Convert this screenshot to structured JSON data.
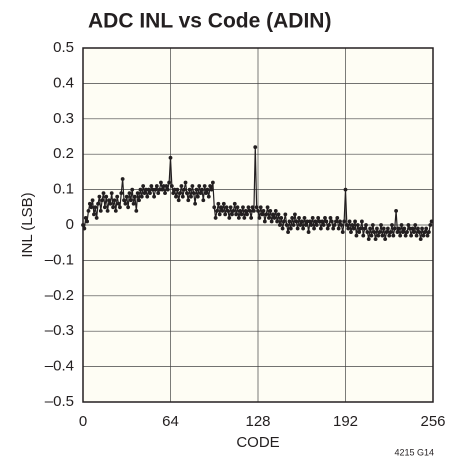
{
  "chart_data": {
    "type": "line",
    "title": "ADC INL vs Code (ADIN)",
    "x_label": "CODE",
    "y_label": "INL (LSB)",
    "annotation": "4215 G14",
    "xlim": [
      0,
      256
    ],
    "xticks": [
      0,
      64,
      128,
      192,
      256
    ],
    "ylim": [
      -0.5,
      0.5
    ],
    "yticks": [
      {
        "value": -0.5,
        "label": "–0.5"
      },
      {
        "value": -0.4,
        "label": "–0.4"
      },
      {
        "value": -0.3,
        "label": "–0.3"
      },
      {
        "value": -0.2,
        "label": "–0.2"
      },
      {
        "value": -0.1,
        "label": "–0.1"
      },
      0,
      0.1,
      0.2,
      0.3,
      0.4,
      0.5
    ],
    "grid": true,
    "color": "#231f20",
    "x": [
      0,
      1,
      2,
      3,
      4,
      5,
      6,
      7,
      8,
      9,
      10,
      11,
      12,
      13,
      14,
      15,
      16,
      17,
      18,
      19,
      20,
      21,
      22,
      23,
      24,
      25,
      26,
      27,
      28,
      29,
      30,
      31,
      32,
      33,
      34,
      35,
      36,
      37,
      38,
      39,
      40,
      41,
      42,
      43,
      44,
      45,
      46,
      47,
      48,
      49,
      50,
      51,
      52,
      53,
      54,
      55,
      56,
      57,
      58,
      59,
      60,
      61,
      62,
      63,
      64,
      65,
      66,
      67,
      68,
      69,
      70,
      71,
      72,
      73,
      74,
      75,
      76,
      77,
      78,
      79,
      80,
      81,
      82,
      83,
      84,
      85,
      86,
      87,
      88,
      89,
      90,
      91,
      92,
      93,
      94,
      95,
      96,
      97,
      98,
      99,
      100,
      101,
      102,
      103,
      104,
      105,
      106,
      107,
      108,
      109,
      110,
      111,
      112,
      113,
      114,
      115,
      116,
      117,
      118,
      119,
      120,
      121,
      122,
      123,
      124,
      125,
      126,
      127,
      128,
      129,
      130,
      131,
      132,
      133,
      134,
      135,
      136,
      137,
      138,
      139,
      140,
      141,
      142,
      143,
      144,
      145,
      146,
      147,
      148,
      149,
      150,
      151,
      152,
      153,
      154,
      155,
      156,
      157,
      158,
      159,
      160,
      161,
      162,
      163,
      164,
      165,
      166,
      167,
      168,
      169,
      170,
      171,
      172,
      173,
      174,
      175,
      176,
      177,
      178,
      179,
      180,
      181,
      182,
      183,
      184,
      185,
      186,
      187,
      188,
      189,
      190,
      191,
      192,
      193,
      194,
      195,
      196,
      197,
      198,
      199,
      200,
      201,
      202,
      203,
      204,
      205,
      206,
      207,
      208,
      209,
      210,
      211,
      212,
      213,
      214,
      215,
      216,
      217,
      218,
      219,
      220,
      221,
      222,
      223,
      224,
      225,
      226,
      227,
      228,
      229,
      230,
      231,
      232,
      233,
      234,
      235,
      236,
      237,
      238,
      239,
      240,
      241,
      242,
      243,
      244,
      245,
      246,
      247,
      248,
      249,
      250,
      251,
      252,
      253,
      254,
      255
    ],
    "values": [
      0.0,
      -0.01,
      0.02,
      0.01,
      0.04,
      0.06,
      0.05,
      0.07,
      0.03,
      0.05,
      0.02,
      0.06,
      0.08,
      0.04,
      0.07,
      0.09,
      0.05,
      0.08,
      0.04,
      0.07,
      0.06,
      0.09,
      0.05,
      0.07,
      0.04,
      0.08,
      0.06,
      0.05,
      0.09,
      0.13,
      0.07,
      0.06,
      0.08,
      0.05,
      0.09,
      0.07,
      0.1,
      0.06,
      0.08,
      0.04,
      0.09,
      0.07,
      0.1,
      0.08,
      0.11,
      0.09,
      0.1,
      0.08,
      0.1,
      0.09,
      0.11,
      0.1,
      0.08,
      0.1,
      0.11,
      0.09,
      0.1,
      0.12,
      0.1,
      0.11,
      0.09,
      0.11,
      0.1,
      0.12,
      0.19,
      0.11,
      0.09,
      0.1,
      0.08,
      0.1,
      0.07,
      0.09,
      0.11,
      0.08,
      0.1,
      0.12,
      0.09,
      0.07,
      0.1,
      0.08,
      0.11,
      0.09,
      0.06,
      0.1,
      0.08,
      0.11,
      0.09,
      0.1,
      0.07,
      0.11,
      0.09,
      0.1,
      0.08,
      0.11,
      0.1,
      0.12,
      0.05,
      0.02,
      0.04,
      0.06,
      0.03,
      0.05,
      0.04,
      0.06,
      0.03,
      0.05,
      0.04,
      0.02,
      0.05,
      0.03,
      0.04,
      0.06,
      0.03,
      0.05,
      0.02,
      0.04,
      0.03,
      0.05,
      0.02,
      0.04,
      0.03,
      0.05,
      0.04,
      0.02,
      0.05,
      0.04,
      0.22,
      0.05,
      0.04,
      0.02,
      0.05,
      0.03,
      0.04,
      0.01,
      0.03,
      0.05,
      0.02,
      0.04,
      0.01,
      0.03,
      0.02,
      0.04,
      0.01,
      0.03,
      0.0,
      0.02,
      -0.01,
      0.01,
      0.03,
      0.0,
      -0.02,
      0.01,
      -0.01,
      0.02,
      0.0,
      0.03,
      0.01,
      -0.01,
      0.02,
      0.0,
      0.01,
      -0.01,
      0.02,
      0.0,
      0.01,
      -0.02,
      0.01,
      0.0,
      0.02,
      -0.01,
      0.01,
      0.0,
      0.02,
      0.01,
      -0.01,
      0.01,
      0.0,
      0.02,
      0.01,
      -0.01,
      0.0,
      0.02,
      0.01,
      -0.01,
      0.0,
      0.01,
      0.02,
      -0.01,
      0.01,
      0.0,
      -0.02,
      0.01,
      0.1,
      0.0,
      -0.01,
      0.01,
      -0.02,
      0.0,
      -0.01,
      0.01,
      -0.03,
      0.0,
      -0.02,
      -0.01,
      0.01,
      -0.03,
      -0.01,
      0.0,
      -0.02,
      -0.04,
      -0.01,
      -0.03,
      0.0,
      -0.02,
      -0.04,
      -0.01,
      -0.03,
      -0.02,
      0.0,
      -0.03,
      -0.01,
      -0.04,
      -0.02,
      -0.01,
      -0.03,
      -0.02,
      0.0,
      -0.03,
      -0.01,
      0.04,
      -0.02,
      -0.01,
      -0.03,
      0.0,
      -0.02,
      -0.01,
      -0.03,
      -0.02,
      0.0,
      -0.01,
      -0.03,
      -0.01,
      -0.02,
      0.0,
      -0.03,
      -0.01,
      -0.02,
      -0.04,
      -0.01,
      -0.03,
      -0.02,
      -0.01,
      -0.03,
      -0.02,
      0.0,
      0.01
    ]
  }
}
